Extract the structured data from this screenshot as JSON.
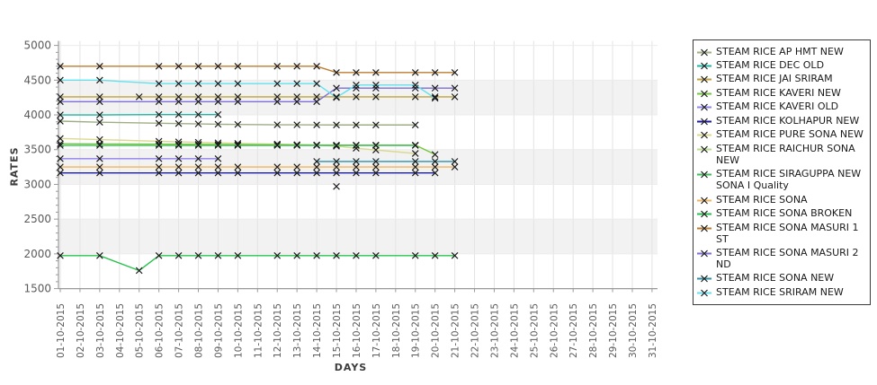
{
  "axes": {
    "y_title": "RATES",
    "x_title": "DAYS",
    "y_ticks": [
      5000,
      4500,
      4000,
      3500,
      3000,
      2500,
      2000,
      1500
    ],
    "x_labels": [
      "01-10-2015",
      "02-10-2015",
      "03-10-2015",
      "04-10-2015",
      "05-10-2015",
      "06-10-2015",
      "07-10-2015",
      "08-10-2015",
      "09-10-2015",
      "10-10-2015",
      "11-10-2015",
      "12-10-2015",
      "13-10-2015",
      "14-10-2015",
      "15-10-2015",
      "16-10-2015",
      "17-10-2015",
      "18-10-2015",
      "19-10-2015",
      "20-10-2015",
      "21-10-2015",
      "22-10-2015",
      "23-10-2015",
      "24-10-2015",
      "25-10-2015",
      "26-10-2015",
      "27-10-2015",
      "28-10-2015",
      "29-10-2015",
      "30-10-2015",
      "31-10-2015"
    ]
  },
  "chart_data": {
    "type": "line",
    "title": "",
    "xlabel": "DAYS",
    "ylabel": "RATES",
    "ylim": [
      1500,
      5000
    ],
    "grid": true,
    "band_color": "#f2f2f2",
    "grid_color": "#e3e3e3",
    "axis_color": "#9a9a9a",
    "tick_label_color": "#5a5a5a",
    "marker": "x",
    "marker_color": "#1a1a1a",
    "legend_position": "right",
    "bands": [
      [
        4500,
        4000
      ],
      [
        3500,
        3000
      ],
      [
        2500,
        2000
      ]
    ],
    "x_categories": [
      "01-10-2015",
      "02-10-2015",
      "03-10-2015",
      "04-10-2015",
      "05-10-2015",
      "06-10-2015",
      "07-10-2015",
      "08-10-2015",
      "09-10-2015",
      "10-10-2015",
      "11-10-2015",
      "12-10-2015",
      "13-10-2015",
      "14-10-2015",
      "15-10-2015",
      "16-10-2015",
      "17-10-2015",
      "18-10-2015",
      "19-10-2015",
      "20-10-2015",
      "21-10-2015",
      "22-10-2015",
      "23-10-2015",
      "24-10-2015",
      "25-10-2015",
      "26-10-2015",
      "27-10-2015",
      "28-10-2015",
      "29-10-2015",
      "30-10-2015",
      "31-10-2015"
    ],
    "series": [
      {
        "name": "STEAM RICE PURE SONA NEW",
        "color": "#dcd98f",
        "points": [
          [
            1,
            3660
          ],
          [
            3,
            3645
          ],
          [
            6,
            3620
          ],
          [
            7,
            3612
          ],
          [
            8,
            3605
          ],
          [
            9,
            3598
          ],
          [
            10,
            3590
          ],
          [
            12,
            3580
          ],
          [
            13,
            3572
          ],
          [
            14,
            3565
          ],
          [
            15,
            3550
          ],
          [
            16,
            3520
          ],
          [
            17,
            3495
          ],
          [
            19,
            3445
          ]
        ]
      },
      {
        "name": "STEAM RICE AP HMT NEW",
        "color": "#9fae85",
        "points": [
          [
            1,
            3910
          ],
          [
            3,
            3895
          ],
          [
            6,
            3880
          ],
          [
            7,
            3875
          ],
          [
            8,
            3870
          ],
          [
            9,
            3865
          ],
          [
            10,
            3862
          ],
          [
            12,
            3858
          ],
          [
            13,
            3857
          ],
          [
            14,
            3856
          ],
          [
            15,
            3855
          ],
          [
            16,
            3855
          ],
          [
            17,
            3855
          ],
          [
            19,
            3855
          ]
        ]
      },
      {
        "name": "STEAM RICE DEC OLD",
        "color": "#1fb5a3",
        "points": [
          [
            1,
            4000
          ],
          [
            3,
            4000
          ],
          [
            6,
            4005
          ],
          [
            7,
            4005
          ],
          [
            8,
            4005
          ],
          [
            9,
            4005
          ]
        ]
      },
      {
        "name": "STEAM RICE JAI SRIRAM",
        "color": "#bfa23a",
        "points": [
          [
            1,
            4260
          ],
          [
            3,
            4260
          ],
          [
            5,
            4260
          ],
          [
            6,
            4260
          ],
          [
            7,
            4260
          ],
          [
            8,
            4260
          ],
          [
            9,
            4260
          ],
          [
            10,
            4260
          ],
          [
            12,
            4260
          ],
          [
            13,
            4260
          ],
          [
            14,
            4260
          ],
          [
            15,
            4260
          ],
          [
            16,
            4260
          ],
          [
            17,
            4260
          ],
          [
            19,
            4260
          ],
          [
            20,
            4260
          ],
          [
            21,
            4260
          ]
        ]
      },
      {
        "name": "STEAM RICE KAVERI NEW",
        "color": "#74c83c",
        "points": [
          [
            1,
            3585
          ],
          [
            3,
            3582
          ],
          [
            6,
            3580
          ],
          [
            7,
            3578
          ],
          [
            8,
            3576
          ],
          [
            9,
            3575
          ],
          [
            10,
            3572
          ],
          [
            12,
            3570
          ],
          [
            13,
            3568
          ],
          [
            14,
            3566
          ],
          [
            15,
            3565
          ],
          [
            16,
            3565
          ],
          [
            17,
            3565
          ],
          [
            19,
            3565
          ],
          [
            20,
            3430
          ]
        ]
      },
      {
        "name": "STEAM RICE KAVERI OLD",
        "color": "#8f83f0",
        "points": [
          [
            1,
            3370
          ],
          [
            3,
            3370
          ],
          [
            6,
            3370
          ],
          [
            7,
            3370
          ],
          [
            8,
            3370
          ],
          [
            9,
            3370
          ]
        ]
      },
      {
        "name": "STEAM RICE KOLHAPUR NEW",
        "color": "#1b1f9e",
        "points": [
          [
            1,
            3165
          ],
          [
            3,
            3165
          ],
          [
            6,
            3165
          ],
          [
            7,
            3165
          ],
          [
            8,
            3165
          ],
          [
            9,
            3165
          ],
          [
            10,
            3165
          ],
          [
            12,
            3165
          ],
          [
            13,
            3165
          ],
          [
            14,
            3165
          ],
          [
            15,
            3165
          ],
          [
            16,
            3165
          ],
          [
            17,
            3165
          ],
          [
            19,
            3165
          ],
          [
            20,
            3165
          ]
        ]
      },
      {
        "name": "STEAM RICE RAICHUR SONA NEW",
        "color": "#b9dc8f",
        "points": [
          [
            15,
            2970
          ]
        ]
      },
      {
        "name": "STEAM RICE SIRAGUPPA NEW SONA I Quality",
        "color": "#3fbf5f",
        "points": [
          [
            1,
            3560
          ],
          [
            3,
            3560
          ],
          [
            6,
            3560
          ],
          [
            7,
            3560
          ],
          [
            8,
            3560
          ],
          [
            9,
            3560
          ],
          [
            10,
            3560
          ],
          [
            12,
            3560
          ],
          [
            13,
            3560
          ],
          [
            14,
            3560
          ],
          [
            15,
            3560
          ],
          [
            16,
            3560
          ],
          [
            17,
            3560
          ],
          [
            19,
            3560
          ]
        ]
      },
      {
        "name": "STEAM RICE SONA",
        "color": "#f2b45a",
        "points": [
          [
            1,
            3250
          ],
          [
            3,
            3250
          ],
          [
            6,
            3250
          ],
          [
            7,
            3250
          ],
          [
            8,
            3250
          ],
          [
            9,
            3250
          ],
          [
            10,
            3250
          ],
          [
            12,
            3250
          ],
          [
            13,
            3250
          ],
          [
            14,
            3250
          ],
          [
            15,
            3250
          ],
          [
            16,
            3250
          ],
          [
            17,
            3250
          ],
          [
            19,
            3250
          ],
          [
            20,
            3250
          ],
          [
            21,
            3250
          ]
        ]
      },
      {
        "name": "STEAM RICE SONA BROKEN",
        "color": "#27c24c",
        "points": [
          [
            1,
            1975
          ],
          [
            3,
            1975
          ],
          [
            5,
            1760
          ],
          [
            6,
            1975
          ],
          [
            7,
            1975
          ],
          [
            8,
            1975
          ],
          [
            9,
            1975
          ],
          [
            10,
            1975
          ],
          [
            12,
            1975
          ],
          [
            13,
            1975
          ],
          [
            14,
            1975
          ],
          [
            15,
            1975
          ],
          [
            16,
            1975
          ],
          [
            17,
            1975
          ],
          [
            19,
            1975
          ],
          [
            20,
            1975
          ],
          [
            21,
            1975
          ]
        ]
      },
      {
        "name": "STEAM RICE SONA MASURI 1ST",
        "color": "#bd7b2f",
        "points": [
          [
            1,
            4700
          ],
          [
            3,
            4700
          ],
          [
            6,
            4700
          ],
          [
            7,
            4700
          ],
          [
            8,
            4700
          ],
          [
            9,
            4700
          ],
          [
            10,
            4700
          ],
          [
            12,
            4700
          ],
          [
            13,
            4700
          ],
          [
            14,
            4700
          ],
          [
            15,
            4610
          ],
          [
            16,
            4610
          ],
          [
            17,
            4610
          ],
          [
            19,
            4610
          ],
          [
            20,
            4610
          ],
          [
            21,
            4610
          ]
        ]
      },
      {
        "name": "STEAM RICE SONA MASURI 2ND",
        "color": "#7e6fd8",
        "points": [
          [
            1,
            4190
          ],
          [
            3,
            4190
          ],
          [
            6,
            4190
          ],
          [
            7,
            4190
          ],
          [
            8,
            4190
          ],
          [
            9,
            4190
          ],
          [
            10,
            4190
          ],
          [
            12,
            4190
          ],
          [
            13,
            4190
          ],
          [
            14,
            4190
          ],
          [
            15,
            4385
          ],
          [
            16,
            4385
          ],
          [
            17,
            4385
          ],
          [
            19,
            4385
          ],
          [
            20,
            4385
          ],
          [
            21,
            4385
          ]
        ]
      },
      {
        "name": "STEAM RICE SONA NEW",
        "color": "#2f8fa3",
        "points": [
          [
            14,
            3330
          ],
          [
            15,
            3330
          ],
          [
            16,
            3330
          ],
          [
            17,
            3330
          ],
          [
            19,
            3330
          ],
          [
            20,
            3330
          ],
          [
            21,
            3330
          ]
        ]
      },
      {
        "name": "STEAM RICE SRIRAM NEW",
        "color": "#63e1ec",
        "points": [
          [
            1,
            4500
          ],
          [
            3,
            4500
          ],
          [
            6,
            4450
          ],
          [
            7,
            4450
          ],
          [
            8,
            4450
          ],
          [
            9,
            4450
          ],
          [
            10,
            4450
          ],
          [
            12,
            4450
          ],
          [
            13,
            4450
          ],
          [
            14,
            4450
          ],
          [
            15,
            4250
          ],
          [
            16,
            4430
          ],
          [
            17,
            4430
          ],
          [
            19,
            4430
          ],
          [
            20,
            4240
          ]
        ]
      }
    ]
  }
}
